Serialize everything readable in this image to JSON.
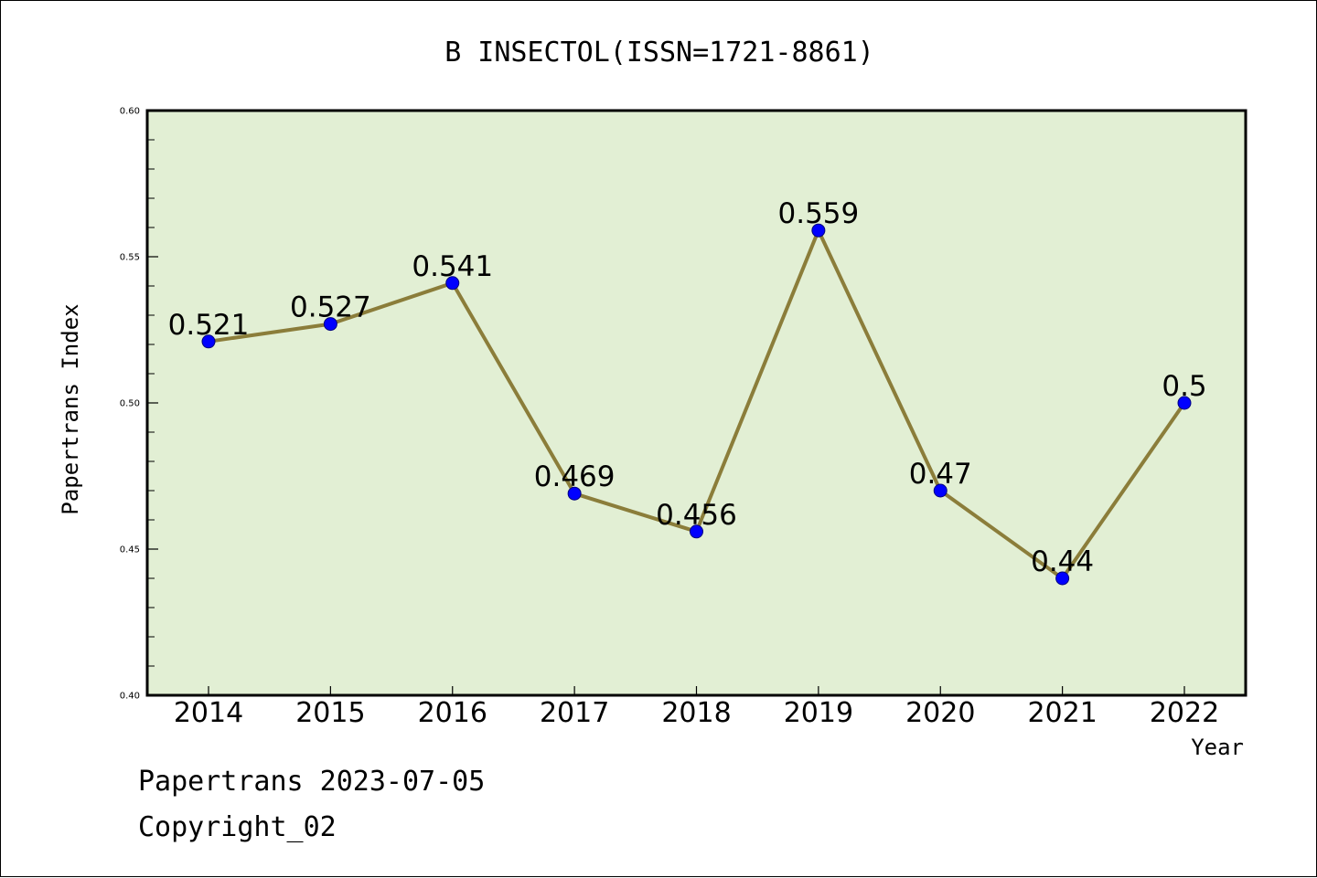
{
  "footer": {
    "line1": "Papertrans 2023-07-05",
    "line2": "Copyright_02"
  },
  "colors": {
    "plot_background": "#e2efd4",
    "line": "#8b7d3a",
    "marker": "#0000ff",
    "marker_edge": "#000080"
  },
  "chart_data": {
    "type": "line",
    "title": "B INSECTOL(ISSN=1721-8861)",
    "xlabel": "Year",
    "ylabel": "Papertrans Index",
    "categories": [
      "2014",
      "2015",
      "2016",
      "2017",
      "2018",
      "2019",
      "2020",
      "2021",
      "2022"
    ],
    "series": [
      {
        "values": [
          0.521,
          0.527,
          0.541,
          0.469,
          0.456,
          0.559,
          0.47,
          0.44,
          0.5
        ],
        "labels": [
          "0.521",
          "0.527",
          "0.541",
          "0.469",
          "0.456",
          "0.559",
          "0.47",
          "0.44",
          "0.5"
        ]
      }
    ],
    "ylim": [
      0.4,
      0.6
    ],
    "yticks": [
      0.4,
      0.45,
      0.5,
      0.55,
      0.6
    ],
    "ytick_labels": [
      "0.40",
      "0.45",
      "0.50",
      "0.55",
      "0.60"
    ],
    "grid": false
  }
}
